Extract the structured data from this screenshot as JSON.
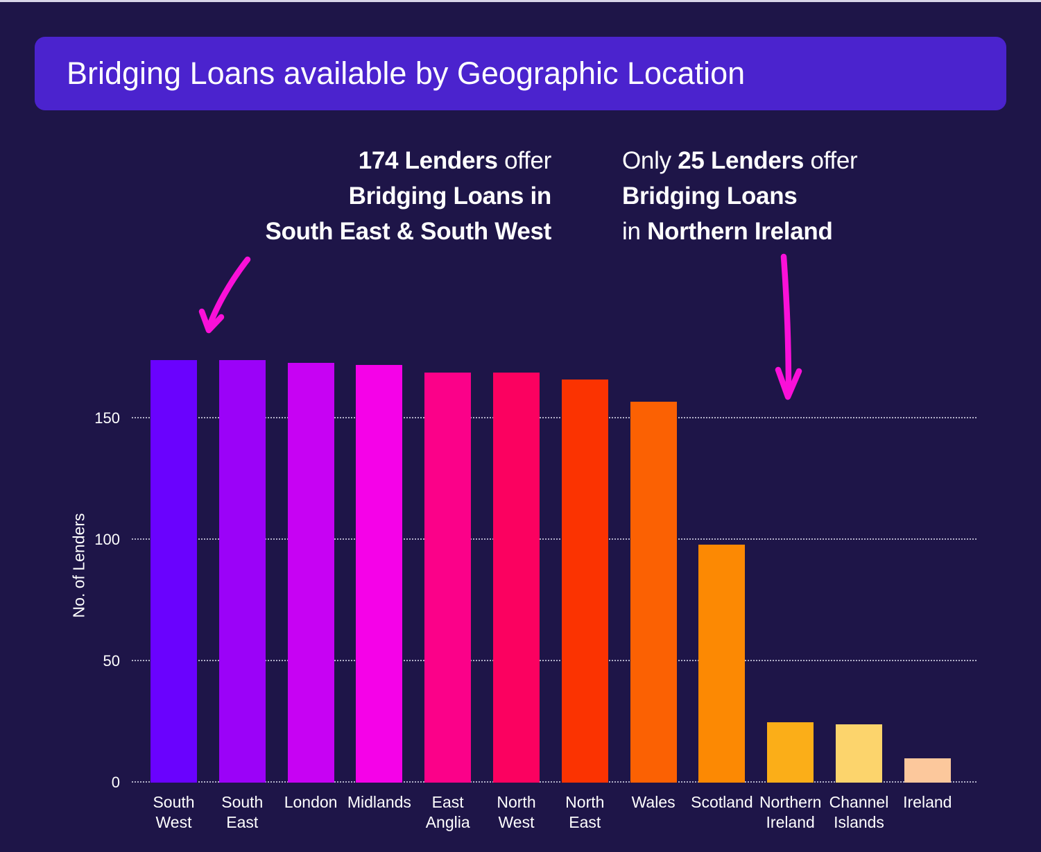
{
  "page": {
    "title": "Bridging Loans available by Geographic Location"
  },
  "annotations": {
    "left": {
      "line1_bold": "174 Lenders",
      "line1_rest": " offer",
      "line2_bold": "Bridging Loans in",
      "line3_bold": "South East & South West"
    },
    "right": {
      "line1_pre": "Only ",
      "line1_bold": "25 Lenders",
      "line1_rest": " offer",
      "line2_bold": "Bridging Loans",
      "line3_pre": "in ",
      "line3_bold": "Northern Ireland"
    }
  },
  "chart_data": {
    "type": "bar",
    "title": "Bridging Loans available by Geographic Location",
    "xlabel": "",
    "ylabel": "No. of Lenders",
    "ylim": [
      0,
      180
    ],
    "yticks": [
      0,
      50,
      100,
      150
    ],
    "grid": "horizontal dotted",
    "legend": "none",
    "categories": [
      "South West",
      "South East",
      "London",
      "Midlands",
      "East Anglia",
      "North West",
      "North East",
      "Wales",
      "Scotland",
      "Northern Ireland",
      "Channel Islands",
      "Ireland"
    ],
    "values": [
      174,
      174,
      173,
      172,
      169,
      169,
      166,
      157,
      98,
      25,
      24,
      10
    ],
    "bar_colors": [
      "#6a02fe",
      "#9b02f8",
      "#c702f3",
      "#f502e8",
      "#fb0189",
      "#fb0160",
      "#fb3301",
      "#fb6103",
      "#fc8903",
      "#fbae18",
      "#fcd46c",
      "#fcc89c"
    ]
  },
  "colors": {
    "background": "#1e1548",
    "banner": "#4b23ce",
    "arrow": "#fa10d8",
    "top_edge": "#d8d5e8",
    "text": "#ffffff"
  }
}
